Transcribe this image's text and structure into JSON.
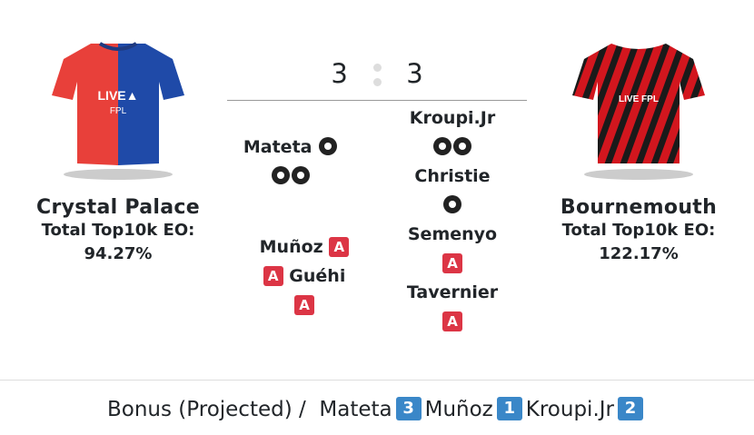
{
  "home": {
    "name": "Crystal Palace",
    "eo_label": "Total Top10k EO:",
    "eo_value": "94.27%",
    "kit_colors": [
      "#e8403a",
      "#1f4aa8"
    ]
  },
  "away": {
    "name": "Bournemouth",
    "eo_label": "Total Top10k EO:",
    "eo_value": "122.17%",
    "kit_colors": [
      "#d2161e",
      "#1a1a1a"
    ]
  },
  "kit_text": "LIVE FPL",
  "score": {
    "home": "3",
    "away": "3"
  },
  "home_events": [
    {
      "player": "Mateta",
      "goals": 3
    },
    {
      "player": "Muñoz",
      "assists": 1
    },
    {
      "player": "Guéhi",
      "assists": 2
    }
  ],
  "away_events": [
    {
      "player": "Kroupi.Jr",
      "goals": 2
    },
    {
      "player": "Christie",
      "goals": 1
    },
    {
      "player": "Semenyo",
      "assists": 1
    },
    {
      "player": "Tavernier",
      "assists": 1
    }
  ],
  "assist_label": "A",
  "bonus": {
    "label": "Bonus (Projected) /",
    "items": [
      {
        "player": "Mateta",
        "points": "3"
      },
      {
        "player": "Muñoz",
        "points": "1"
      },
      {
        "player": "Kroupi.Jr",
        "points": "2"
      }
    ]
  },
  "colors": {
    "assist": "#dc3545",
    "bonus": "#3a87c8"
  }
}
